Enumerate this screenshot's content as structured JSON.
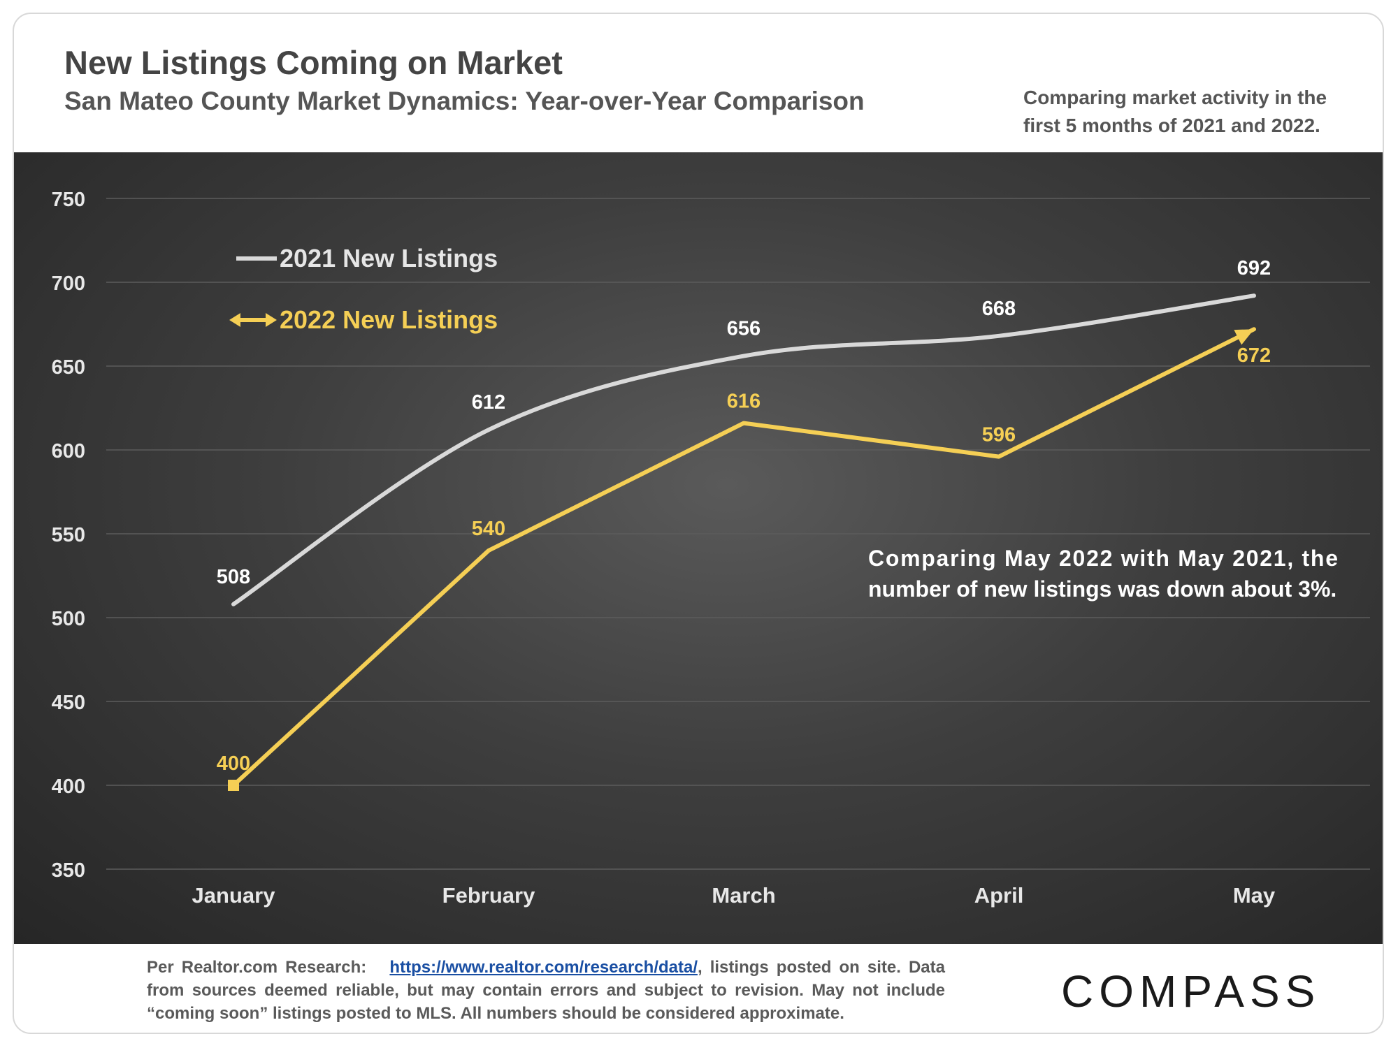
{
  "header": {
    "title": "New Listings Coming on Market",
    "subtitle": "San Mateo County Market Dynamics: Year-over-Year Comparison",
    "note": "Comparing market activity in the first 5 months of 2021 and 2022."
  },
  "annotation": {
    "line1": "Comparing May 2022 with May 2021, the",
    "line2": "number of new listings was down about 3%."
  },
  "footer": {
    "prefix": "Per Realtor.com Research:",
    "link": "https://www.realtor.com/research/data/",
    "suffix": ", listings posted on site. Data from sources deemed reliable, but may contain errors and subject to revision. May not include “coming soon” listings posted to MLS. All numbers should be considered approximate."
  },
  "logo": {
    "text": "COMPASS"
  },
  "colors": {
    "series_2021": "#d9d9d9",
    "series_2022": "#f5cf55",
    "tick_text": "#e8e8e8",
    "grid": "#5c5c5c"
  },
  "chart_data": {
    "type": "line",
    "categories": [
      "January",
      "February",
      "March",
      "April",
      "May"
    ],
    "series": [
      {
        "name": "2021 New Listings",
        "values": [
          508,
          612,
          656,
          668,
          692
        ],
        "smooth": true
      },
      {
        "name": "2022 New Listings",
        "values": [
          400,
          540,
          616,
          596,
          672
        ],
        "smooth": false
      }
    ],
    "yticks": [
      350,
      400,
      450,
      500,
      550,
      600,
      650,
      700,
      750
    ],
    "ylim": [
      350,
      750
    ],
    "grid": true,
    "legend_position": "top-left"
  }
}
